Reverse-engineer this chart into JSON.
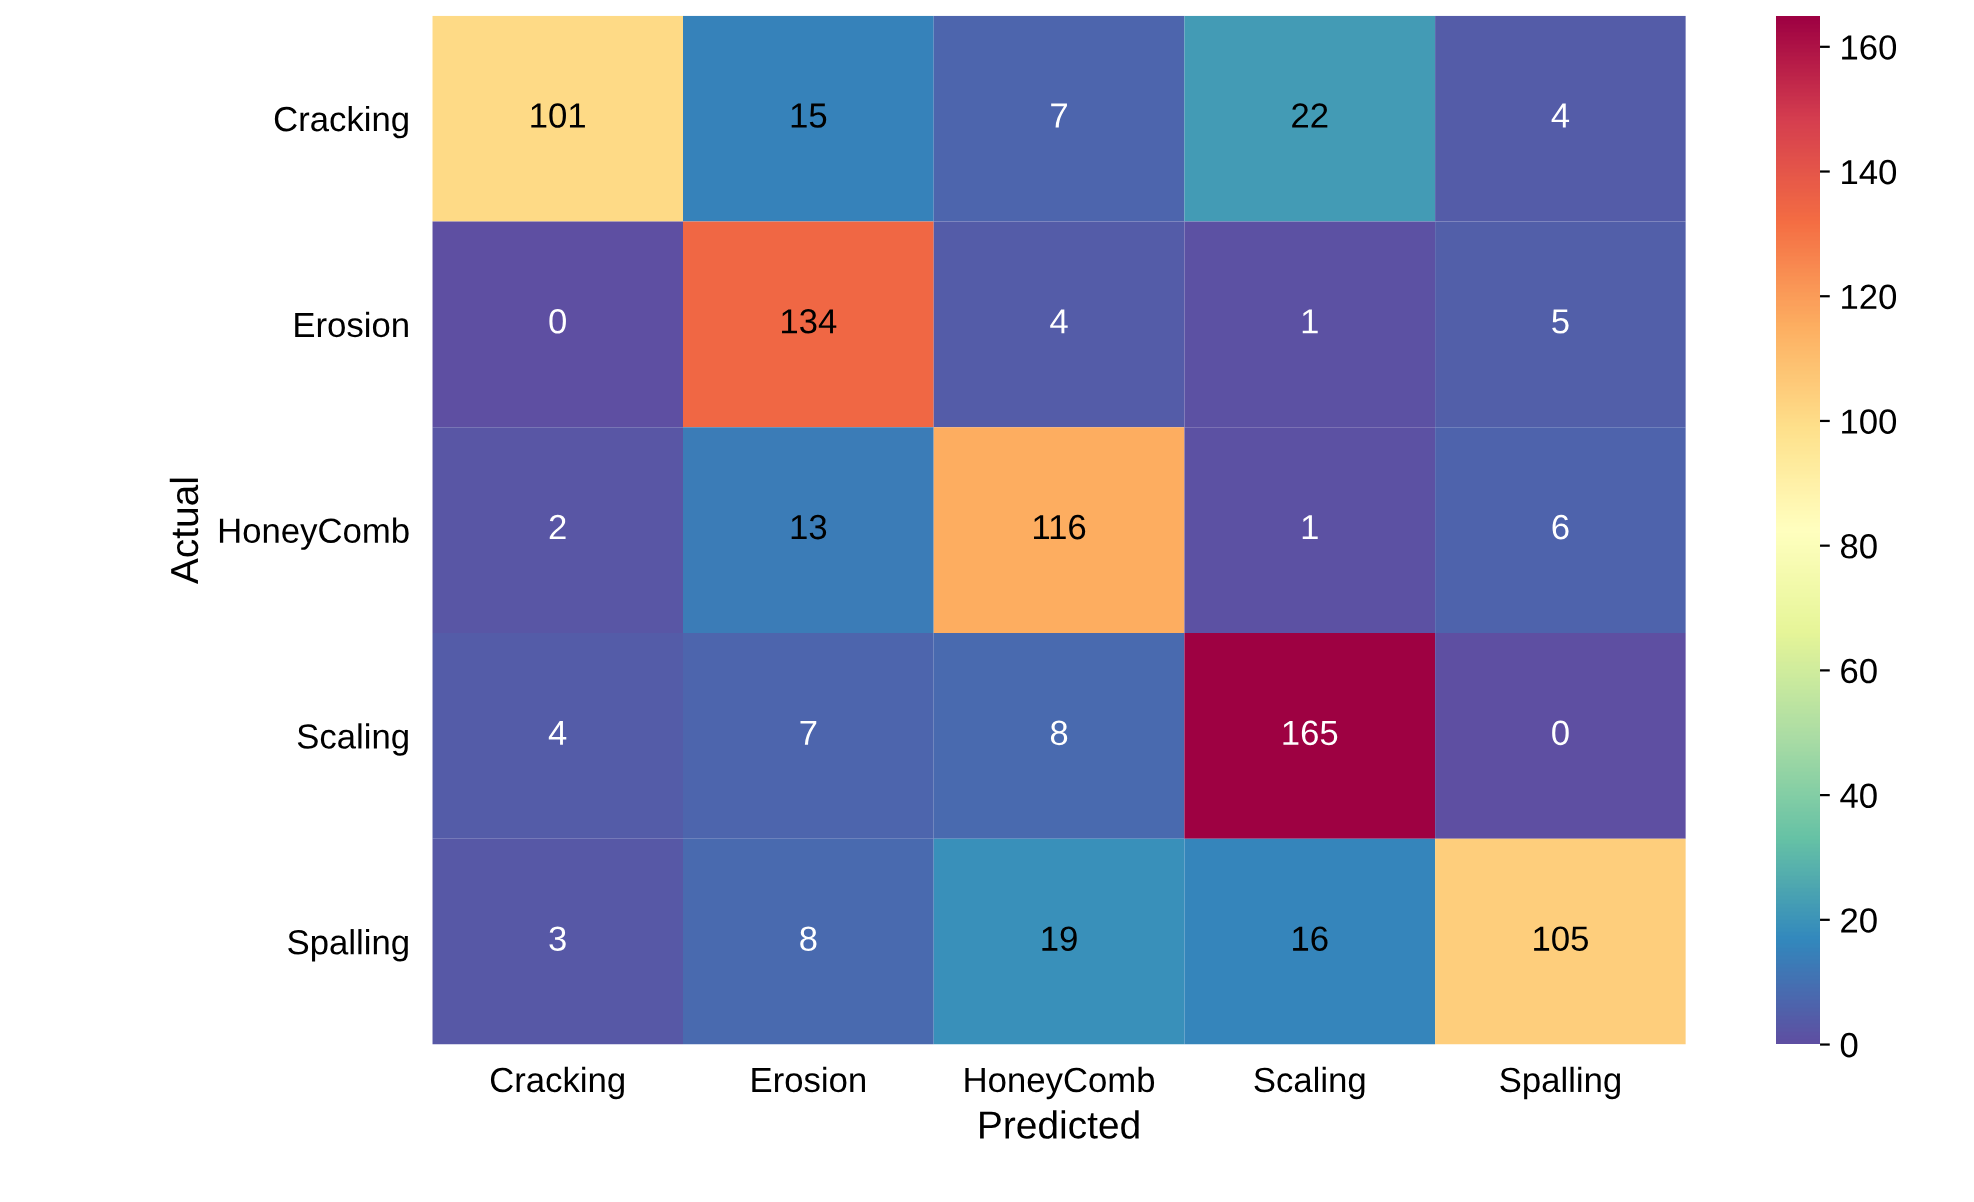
{
  "chart_data": {
    "type": "heatmap",
    "xlabel": "Predicted",
    "ylabel": "Actual",
    "categories": [
      "Cracking",
      "Erosion",
      "HoneyComb",
      "Scaling",
      "Spalling"
    ],
    "y_categories": [
      "Cracking",
      "Erosion",
      "HoneyComb",
      "Scaling",
      "Spalling"
    ],
    "cells": [
      [
        101,
        15,
        7,
        22,
        4
      ],
      [
        0,
        134,
        4,
        1,
        5
      ],
      [
        2,
        13,
        116,
        1,
        6
      ],
      [
        4,
        7,
        8,
        165,
        0
      ],
      [
        3,
        8,
        19,
        16,
        105
      ]
    ],
    "clim": [
      0,
      165
    ],
    "cticks": [
      0,
      20,
      40,
      60,
      80,
      100,
      120,
      140,
      160
    ],
    "data_labels": true
  }
}
